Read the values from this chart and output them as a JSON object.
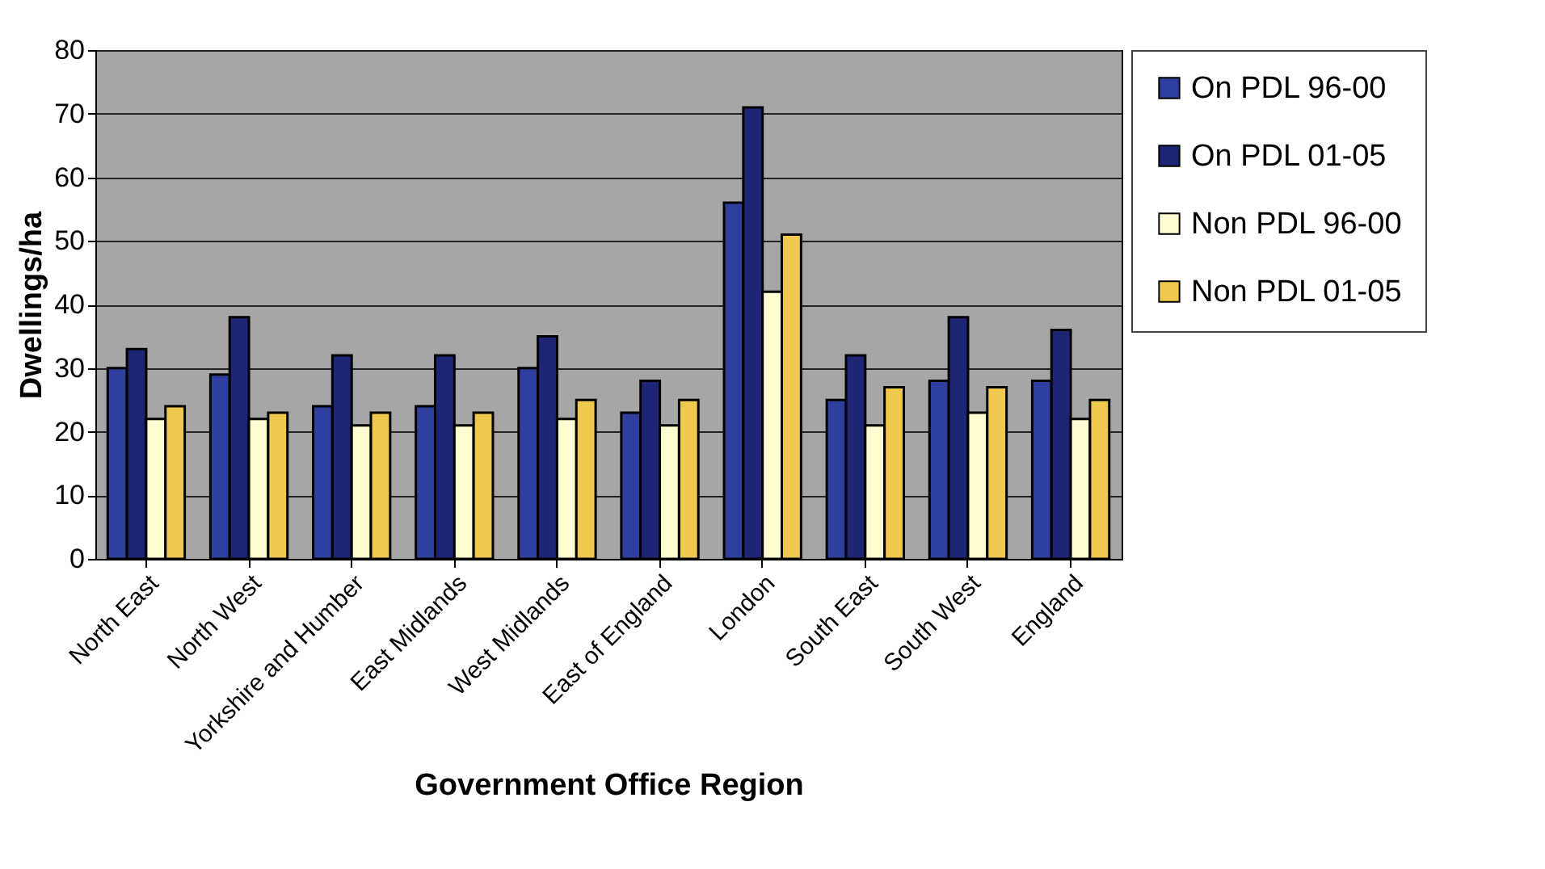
{
  "chart_data": {
    "type": "bar",
    "xlabel": "Government Office Region",
    "ylabel": "Dwellings/ha",
    "categories": [
      "North East",
      "North West",
      "Yorkshire and Humber",
      "East Midlands",
      "West Midlands",
      "East of England",
      "London",
      "South East",
      "South West",
      "England"
    ],
    "series": [
      {
        "name": "On PDL 96-00",
        "color": "#2e3f9e",
        "values": [
          30,
          29,
          24,
          24,
          30,
          23,
          56,
          25,
          28,
          28
        ]
      },
      {
        "name": "On PDL 01-05",
        "color": "#1f2575",
        "values": [
          33,
          38,
          32,
          32,
          35,
          28,
          71,
          32,
          38,
          36
        ]
      },
      {
        "name": "Non PDL 96-00",
        "color": "#ffffd2",
        "values": [
          22,
          22,
          21,
          21,
          22,
          21,
          42,
          21,
          23,
          22
        ]
      },
      {
        "name": "Non PDL 01-05",
        "color": "#efc84e",
        "values": [
          24,
          23,
          23,
          23,
          25,
          25,
          51,
          27,
          27,
          25
        ]
      }
    ],
    "ylim": [
      0,
      80
    ],
    "yticks": [
      0,
      10,
      20,
      30,
      40,
      50,
      60,
      70,
      80
    ],
    "grid": "y",
    "legend": "right"
  }
}
